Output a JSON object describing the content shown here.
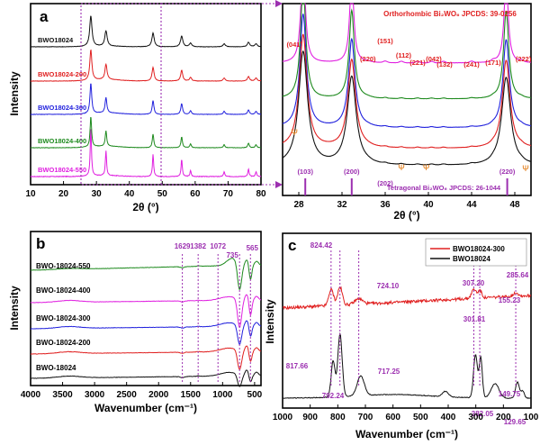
{
  "figure": {
    "zoom_guide_color": "#9c2fb0"
  },
  "chart_data": [
    {
      "id": "a",
      "type": "line",
      "panel_label": "a",
      "xlabel": "2θ (°)",
      "ylabel": "Intensity",
      "xlim": [
        10,
        80
      ],
      "xticks": [
        10,
        20,
        30,
        40,
        50,
        60,
        70,
        80
      ],
      "zoom_region": [
        27,
        49
      ],
      "series": [
        {
          "name": "BWO18024-550",
          "color": "#e020e0",
          "offset": 4
        },
        {
          "name": "BWO18024-400",
          "color": "#1e8a1e",
          "offset": 3
        },
        {
          "name": "BWO18024-300",
          "color": "#2222dd",
          "offset": 2
        },
        {
          "name": "BWO18024-200",
          "color": "#e02020",
          "offset": 1
        },
        {
          "name": "BWO18024",
          "color": "#111111",
          "offset": 0
        }
      ],
      "peaks": [
        {
          "pos": 28.3,
          "h": 1.0
        },
        {
          "pos": 32.9,
          "h": 0.5
        },
        {
          "pos": 47.2,
          "h": 0.45
        },
        {
          "pos": 55.9,
          "h": 0.35
        },
        {
          "pos": 58.6,
          "h": 0.12
        },
        {
          "pos": 68.8,
          "h": 0.1
        },
        {
          "pos": 76.2,
          "h": 0.15
        },
        {
          "pos": 78.5,
          "h": 0.1
        }
      ]
    },
    {
      "id": "a-zoom",
      "type": "line",
      "xlabel": "2θ (°)",
      "xlim": [
        26.5,
        49.5
      ],
      "xticks": [
        28,
        32,
        36,
        40,
        44,
        48
      ],
      "annotation_top": "Orthorhombic Bi₂WO₆ JPCDS: 39-0256",
      "annotation_bottom": "Tetragonal Bi₂WO₆ JPCDS: 26-1044",
      "orthorhombic_labels": [
        {
          "text": "(041)",
          "x": 27.6
        },
        {
          "text": "(220)",
          "x": 34.4
        },
        {
          "text": "(151)",
          "x": 36.0
        },
        {
          "text": "(112)",
          "x": 37.7
        },
        {
          "text": "(221)",
          "x": 39.0
        },
        {
          "text": "(042)",
          "x": 40.5
        },
        {
          "text": "(132)",
          "x": 41.5
        },
        {
          "text": "(241)",
          "x": 44.0
        },
        {
          "text": "(171)",
          "x": 46.0
        },
        {
          "text": "(222)",
          "x": 48.8
        }
      ],
      "tetragonal_lines": [
        {
          "text": "(103)",
          "x": 28.6
        },
        {
          "text": "(200)",
          "x": 32.9
        },
        {
          "text": "(202)",
          "x": 36.0
        },
        {
          "text": "(220)",
          "x": 47.3
        }
      ],
      "psi_marks": [
        {
          "text": "Ψ",
          "x": 27.6
        },
        {
          "text": "Ψ",
          "x": 37.5
        },
        {
          "text": "Ψ",
          "x": 39.8
        },
        {
          "text": "Ψ",
          "x": 49.0
        }
      ]
    },
    {
      "id": "b",
      "type": "line",
      "panel_label": "b",
      "xlabel": "Wavenumber (cm⁻¹)",
      "ylabel": "Intensity",
      "xlim": [
        4000,
        400
      ],
      "xticks": [
        4000,
        3500,
        3000,
        2500,
        2000,
        1500,
        1000,
        500
      ],
      "series": [
        {
          "name": "BWO-18024-550",
          "color": "#1e8a1e"
        },
        {
          "name": "BWO-18024-400",
          "color": "#e020e0"
        },
        {
          "name": "BWO-18024-300",
          "color": "#2222dd"
        },
        {
          "name": "BWO-18024-200",
          "color": "#e02020"
        },
        {
          "name": "BWO-18024",
          "color": "#111111"
        }
      ],
      "peak_lines": [
        {
          "text": "1629",
          "x": 1629
        },
        {
          "text": "1382",
          "x": 1382
        },
        {
          "text": "1072",
          "x": 1072
        },
        {
          "text": "735",
          "x": 735
        },
        {
          "text": "565",
          "x": 565
        }
      ]
    },
    {
      "id": "c",
      "type": "line",
      "panel_label": "c",
      "xlabel": "Wavenumber (cm⁻¹)",
      "ylabel": "Intensity",
      "xlim": [
        1000,
        100
      ],
      "xticks": [
        1000,
        900,
        800,
        700,
        600,
        500,
        400,
        300,
        200,
        100
      ],
      "series": [
        {
          "name": "BWO18024-300",
          "color": "#e02020"
        },
        {
          "name": "BWO18024",
          "color": "#111111"
        }
      ],
      "peak_lines": [
        {
          "x": 824.42
        },
        {
          "x": 792.24
        },
        {
          "x": 724.1
        },
        {
          "x": 307.2
        },
        {
          "x": 285.64
        },
        {
          "x": 155.23
        }
      ],
      "annotations": [
        {
          "text": "824.42",
          "color": "#9c2fb0"
        },
        {
          "text": "724.10",
          "color": "#9c2fb0"
        },
        {
          "text": "307.20",
          "color": "#9c2fb0"
        },
        {
          "text": "285.64",
          "color": "#9c2fb0"
        },
        {
          "text": "155.23",
          "color": "#9c2fb0"
        },
        {
          "text": "817.66",
          "color": "#9c2fb0"
        },
        {
          "text": "717.25",
          "color": "#9c2fb0"
        },
        {
          "text": "792.24",
          "color": "#9c2fb0"
        },
        {
          "text": "301.81",
          "color": "#9c2fb0"
        },
        {
          "text": "282.05",
          "color": "#9c2fb0"
        },
        {
          "text": "149.75",
          "color": "#9c2fb0"
        },
        {
          "text": "129.65",
          "color": "#9c2fb0"
        }
      ]
    }
  ]
}
